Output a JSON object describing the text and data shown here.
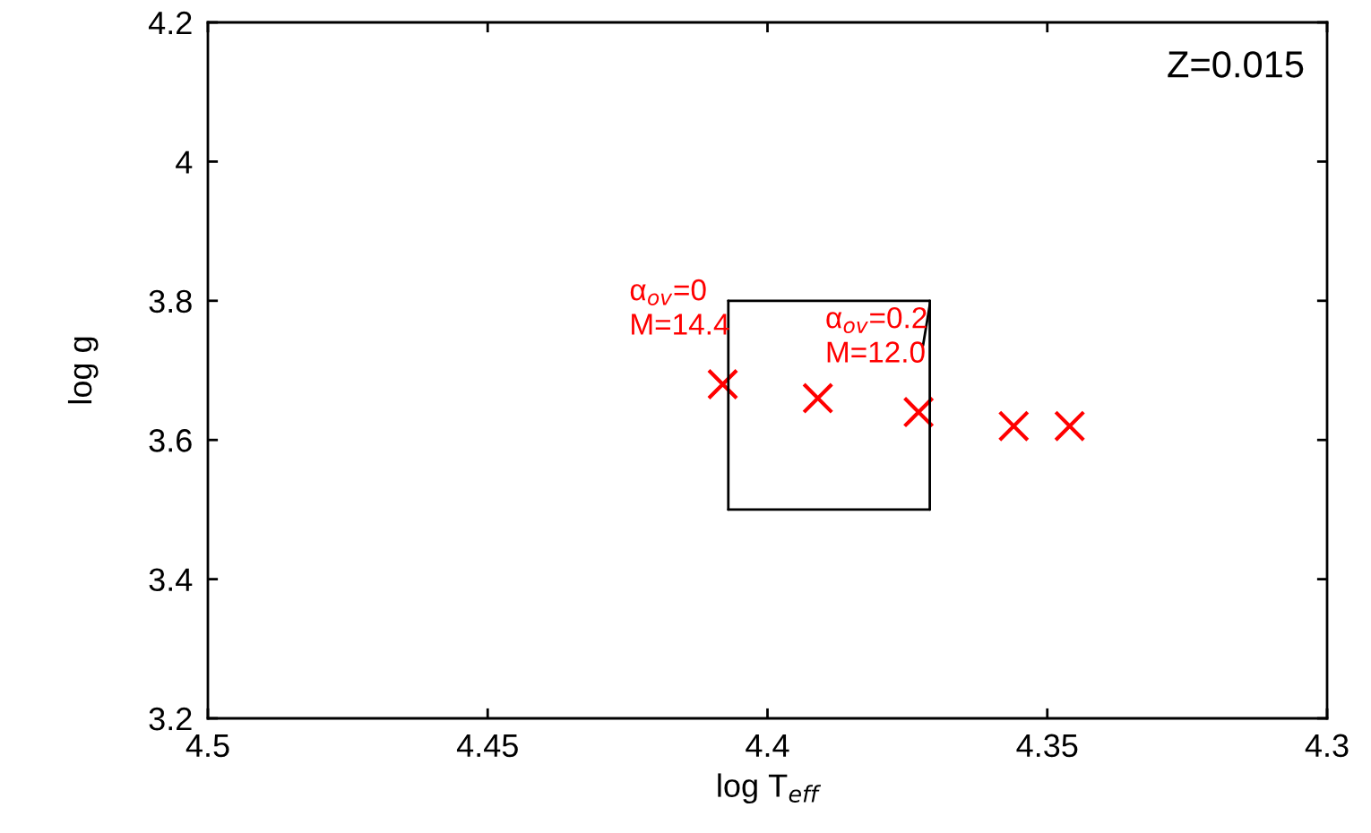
{
  "chart_data": {
    "type": "scatter",
    "xlabel": "log T$_{eff}$",
    "ylabel": "log g",
    "xlim": [
      4.5,
      4.3
    ],
    "xticks": [
      4.5,
      4.45,
      4.4,
      4.35,
      4.3
    ],
    "ylim": [
      3.2,
      4.2
    ],
    "yticks": [
      3.2,
      3.4,
      3.6,
      3.8,
      4,
      4.2
    ],
    "grid": false,
    "legend": false,
    "series": [
      {
        "type": "line",
        "color": "#000000",
        "line_style": "solid",
        "marker": "none",
        "x": [
          4.407,
          4.371
        ],
        "values": [
          3.8,
          3.8
        ]
      },
      {
        "type": "line",
        "color": "#000000",
        "line_style": "solid",
        "marker": "none",
        "x": [
          4.407,
          4.371
        ],
        "values": [
          3.5,
          3.5
        ]
      },
      {
        "type": "line",
        "color": "#000000",
        "line_style": "solid",
        "marker": "none",
        "x": [
          4.407,
          4.407
        ],
        "values": [
          3.5,
          3.8
        ]
      },
      {
        "type": "line",
        "color": "#000000",
        "line_style": "solid",
        "marker": "none",
        "x": [
          4.371,
          4.371
        ],
        "values": [
          3.5,
          3.8
        ]
      },
      {
        "type": "line",
        "color": "#000000",
        "line_style": "solid",
        "marker": "none",
        "x": [
          4.371,
          4.3722
        ],
        "values": [
          3.794,
          3.736
        ]
      },
      {
        "color": "#ff0000",
        "marker": "cross",
        "x": [
          4.408,
          4.391,
          4.373,
          4.356,
          4.346
        ],
        "values": [
          3.68,
          3.66,
          3.64,
          3.62,
          3.62
        ]
      }
    ],
    "annotations": [
      {
        "text": "α$_{ov}$=0\nM=14.4",
        "x": 4.408,
        "y": 3.68
      },
      {
        "text": "α$_{ov}$=0.2\nM=12.0",
        "x": 4.373,
        "y": 3.64
      },
      "Z=0.015"
    ]
  }
}
